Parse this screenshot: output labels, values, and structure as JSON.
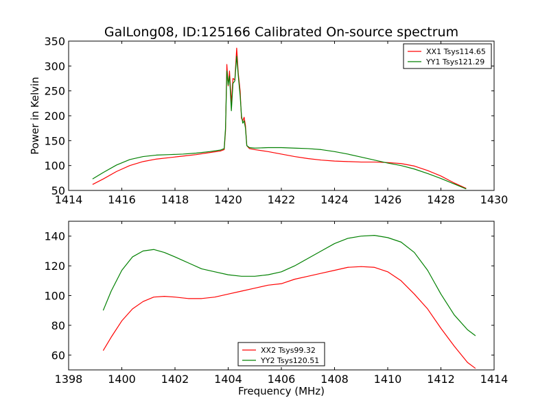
{
  "figure": {
    "title": "GalLong08, ID:125166 Calibrated On-source spectrum",
    "xlabel": "Frequency (MHz)"
  },
  "chart_data": [
    {
      "type": "line",
      "ylabel": "Power in Kelvin",
      "xlim": [
        1414,
        1430
      ],
      "ylim": [
        50,
        350
      ],
      "xticks": [
        "1414",
        "1416",
        "1418",
        "1420",
        "1422",
        "1424",
        "1426",
        "1428",
        "1430"
      ],
      "yticks": [
        "50",
        "100",
        "150",
        "200",
        "250",
        "300",
        "350"
      ],
      "legend_position": "top-right",
      "series": [
        {
          "name": "XX1 Tsys114.65",
          "color": "#ff0000",
          "x": [
            1414.9,
            1415.3,
            1415.8,
            1416.3,
            1416.8,
            1417.3,
            1417.8,
            1418.3,
            1418.8,
            1419.3,
            1419.7,
            1419.85,
            1419.9,
            1419.95,
            1420.0,
            1420.05,
            1420.12,
            1420.18,
            1420.25,
            1420.32,
            1420.38,
            1420.45,
            1420.5,
            1420.55,
            1420.6,
            1420.65,
            1420.7,
            1420.8,
            1421.0,
            1421.5,
            1422.0,
            1422.5,
            1423.0,
            1423.5,
            1424.0,
            1424.5,
            1425.0,
            1425.5,
            1426.0,
            1426.5,
            1427.0,
            1427.5,
            1428.0,
            1428.5,
            1428.95
          ],
          "y": [
            62,
            73,
            88,
            100,
            108,
            113,
            116,
            119,
            122,
            126,
            129,
            132,
            170,
            303,
            260,
            290,
            225,
            275,
            272,
            336,
            285,
            250,
            195,
            190,
            197,
            180,
            140,
            134,
            132,
            128,
            123,
            118,
            114,
            111,
            109,
            108,
            107,
            107,
            106,
            104,
            99,
            90,
            79,
            65,
            54
          ]
        },
        {
          "name": "YY1 Tsys121.29",
          "color": "#008000",
          "x": [
            1414.9,
            1415.3,
            1415.8,
            1416.3,
            1416.8,
            1417.3,
            1417.8,
            1418.3,
            1418.8,
            1419.3,
            1419.7,
            1419.85,
            1419.9,
            1419.95,
            1420.0,
            1420.05,
            1420.12,
            1420.18,
            1420.25,
            1420.32,
            1420.38,
            1420.45,
            1420.5,
            1420.55,
            1420.6,
            1420.65,
            1420.7,
            1420.8,
            1421.0,
            1421.5,
            1422.0,
            1422.5,
            1423.0,
            1423.5,
            1424.0,
            1424.5,
            1425.0,
            1425.5,
            1426.0,
            1426.5,
            1427.0,
            1427.5,
            1428.0,
            1428.5,
            1428.95
          ],
          "y": [
            73,
            86,
            101,
            112,
            118,
            121,
            122,
            123,
            125,
            128,
            131,
            134,
            175,
            290,
            262,
            280,
            210,
            265,
            270,
            320,
            280,
            240,
            200,
            185,
            190,
            175,
            140,
            136,
            135,
            136,
            136,
            135,
            134,
            132,
            128,
            123,
            117,
            111,
            105,
            100,
            93,
            84,
            74,
            63,
            53
          ]
        }
      ]
    },
    {
      "type": "line",
      "ylabel": "",
      "xlim": [
        1398,
        1414
      ],
      "ylim": [
        50,
        150
      ],
      "xticks": [
        "1398",
        "1400",
        "1402",
        "1404",
        "1406",
        "1408",
        "1410",
        "1412",
        "1414"
      ],
      "yticks": [
        "60",
        "80",
        "100",
        "120",
        "140"
      ],
      "legend_position": "bottom-center",
      "series": [
        {
          "name": "XX2 Tsys99.32",
          "color": "#ff0000",
          "x": [
            1399.3,
            1399.6,
            1400.0,
            1400.4,
            1400.8,
            1401.2,
            1401.6,
            1402.0,
            1402.5,
            1403.0,
            1403.5,
            1404.0,
            1404.5,
            1405.0,
            1405.5,
            1406.0,
            1406.5,
            1407.0,
            1407.5,
            1408.0,
            1408.5,
            1409.0,
            1409.5,
            1410.0,
            1410.5,
            1411.0,
            1411.5,
            1412.0,
            1412.5,
            1413.0,
            1413.3
          ],
          "y": [
            63,
            72,
            83,
            91,
            96,
            99,
            99.5,
            99,
            98,
            98,
            99,
            101,
            103,
            105,
            107,
            108,
            111,
            113,
            115,
            117,
            119,
            119.5,
            119,
            116,
            110,
            101,
            91,
            78,
            66,
            55,
            51
          ]
        },
        {
          "name": "YY2 Tsys120.51",
          "color": "#008000",
          "x": [
            1399.3,
            1399.6,
            1400.0,
            1400.4,
            1400.8,
            1401.2,
            1401.6,
            1402.0,
            1402.5,
            1403.0,
            1403.5,
            1404.0,
            1404.5,
            1405.0,
            1405.5,
            1406.0,
            1406.5,
            1407.0,
            1407.5,
            1408.0,
            1408.5,
            1409.0,
            1409.5,
            1410.0,
            1410.5,
            1411.0,
            1411.5,
            1412.0,
            1412.5,
            1413.0,
            1413.3
          ],
          "y": [
            90,
            103,
            117,
            126,
            130,
            131,
            129,
            126,
            122,
            118,
            116,
            114,
            113,
            113,
            114,
            116,
            120,
            125,
            130,
            135,
            138.5,
            140,
            140.5,
            139,
            136,
            129,
            117,
            101,
            87,
            77,
            73
          ]
        }
      ]
    }
  ]
}
